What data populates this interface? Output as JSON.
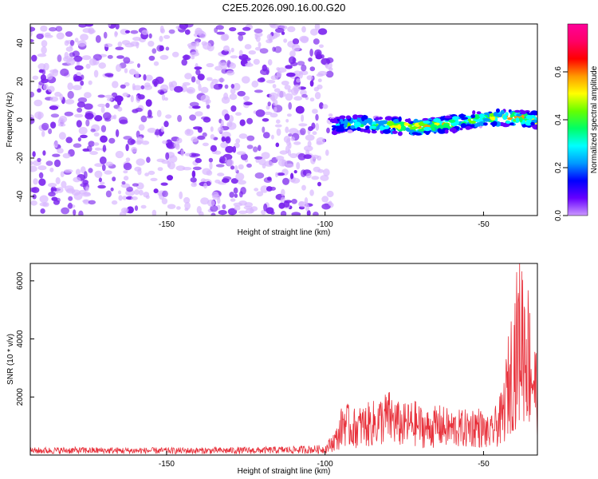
{
  "title": "C2E5.2026.090.16.00.G20",
  "chart_data": [
    {
      "type": "heatmap",
      "xlabel": "Height of straight line (km)",
      "ylabel": "Frequency (Hz)",
      "xlim": [
        -193,
        -33
      ],
      "ylim": [
        -50,
        50
      ],
      "xticks": [
        -150,
        -100,
        -50
      ],
      "yticks": [
        -40,
        -20,
        0,
        20,
        40
      ],
      "colorbar": {
        "label": "Normalized spectral amplitude",
        "range": [
          0,
          0.8
        ],
        "ticks": [
          "0.0",
          "0.2",
          "0.4",
          "0.6"
        ],
        "colors": [
          "#cc99ff",
          "#6600ff",
          "#0000ff",
          "#0099ff",
          "#00ffff",
          "#00ff66",
          "#66ff00",
          "#ffff00",
          "#ff9900",
          "#ff0000",
          "#ff0066",
          "#ff0099"
        ]
      },
      "noise_region": {
        "x": [
          -193,
          -98
        ],
        "amplitude": [
          0.0,
          0.15
        ],
        "color": "#7a22ee"
      },
      "signal_track": {
        "x": [
          -98,
          -90,
          -80,
          -70,
          -60,
          -50,
          -40,
          -33
        ],
        "freq": [
          -3,
          -2,
          -3,
          -4,
          -2,
          1,
          1,
          0
        ],
        "peak_amplitude": [
          0.35,
          0.5,
          0.55,
          0.7,
          0.6,
          0.55,
          0.75,
          0.6
        ]
      },
      "grid": false
    },
    {
      "type": "line",
      "xlabel": "Height of straight line (km)",
      "ylabel": "SNR (10 * v/v)",
      "xlim": [
        -193,
        -33
      ],
      "ylim": [
        0,
        6600
      ],
      "xticks": [
        -150,
        -100,
        -50
      ],
      "yticks": [
        2000,
        4000,
        6000
      ],
      "series": [
        {
          "color": "#e8323c",
          "x": [
            -193,
            -180,
            -160,
            -140,
            -120,
            -100,
            -96,
            -94,
            -92,
            -88,
            -84,
            -80,
            -76,
            -72,
            -68,
            -64,
            -60,
            -56,
            -52,
            -48,
            -44,
            -42,
            -40,
            -38,
            -36,
            -34,
            -33
          ],
          "y": [
            150,
            160,
            150,
            150,
            160,
            200,
            600,
            1200,
            900,
            1000,
            1100,
            1300,
            1000,
            1100,
            900,
            1000,
            900,
            900,
            1000,
            700,
            1300,
            2500,
            3500,
            4200,
            3500,
            2500,
            2000
          ]
        }
      ],
      "grid": false
    }
  ]
}
